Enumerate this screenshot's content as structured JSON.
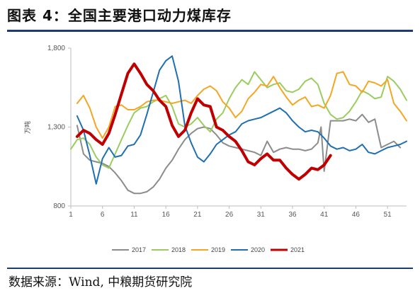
{
  "figure": {
    "title": "图表 4：全国主要港口动力煤库存",
    "source": "数据来源：Wind, 中粮期货研究院"
  },
  "chart_data": {
    "type": "line",
    "ylabel": "万吨",
    "ylim": [
      800,
      1800
    ],
    "yticks": [
      "800",
      "1,300",
      "1,800"
    ],
    "yticks_values": [
      800,
      1300,
      1800
    ],
    "xlim": [
      1,
      54
    ],
    "xticks": [
      "1",
      "6",
      "11",
      "16",
      "21",
      "26",
      "31",
      "36",
      "41",
      "46",
      "51"
    ],
    "xticks_values": [
      1,
      6,
      11,
      16,
      21,
      26,
      31,
      36,
      41,
      46,
      51
    ],
    "legend_position": "bottom",
    "series": [
      {
        "name": "2017",
        "color": "#8c8c8c",
        "width": 2,
        "x": [
          2,
          3,
          4,
          5,
          6,
          7,
          8,
          9,
          10,
          11,
          12,
          13,
          14,
          15,
          16,
          17,
          18,
          19,
          20,
          21,
          22,
          23,
          24,
          25,
          26,
          27,
          28,
          29,
          30,
          31,
          32,
          33,
          34,
          35,
          36,
          37,
          38,
          39,
          40,
          40.5,
          41,
          41.5,
          42,
          43,
          44,
          45,
          46,
          47,
          48,
          49,
          50,
          51,
          52,
          53
        ],
        "values": [
          1310,
          1130,
          1090,
          1080,
          1070,
          1050,
          1010,
          960,
          900,
          880,
          880,
          890,
          920,
          970,
          1040,
          1090,
          1160,
          1220,
          1260,
          1290,
          1300,
          1290,
          1250,
          1200,
          1180,
          1170,
          1160,
          1150,
          1140,
          1120,
          1210,
          1140,
          1160,
          1170,
          1160,
          1160,
          1150,
          1160,
          1200,
          1300,
          1020,
          1180,
          1340,
          1340,
          1340,
          1350,
          1340,
          1380,
          1330,
          1350,
          1170,
          1190,
          1210,
          1170
        ]
      },
      {
        "name": "2018",
        "color": "#9acd5f",
        "width": 2,
        "x": [
          1,
          2,
          3,
          4,
          5,
          6,
          7,
          8,
          9,
          10,
          11,
          12,
          13,
          14,
          15,
          16,
          17,
          18,
          19,
          20,
          21,
          22,
          23,
          24,
          25,
          26,
          27,
          28,
          29,
          30,
          31,
          32,
          33,
          34,
          35,
          36,
          37,
          38,
          39,
          40,
          41,
          42,
          43,
          44,
          45,
          46,
          47,
          48,
          49,
          50,
          51,
          52,
          53,
          54
        ],
        "values": [
          1160,
          1220,
          1230,
          1190,
          1110,
          1060,
          1040,
          1130,
          1220,
          1310,
          1390,
          1420,
          1430,
          1460,
          1480,
          1500,
          1430,
          1320,
          1300,
          1320,
          1360,
          1310,
          1270,
          1350,
          1390,
          1480,
          1550,
          1600,
          1570,
          1650,
          1600,
          1550,
          1570,
          1580,
          1530,
          1520,
          1540,
          1590,
          1610,
          1570,
          1450,
          1380,
          1350,
          1360,
          1400,
          1460,
          1530,
          1510,
          1480,
          1490,
          1620,
          1590,
          1540,
          1470
        ]
      },
      {
        "name": "2019",
        "color": "#f5a623",
        "width": 2,
        "x": [
          2,
          3,
          4,
          5,
          6,
          7,
          8,
          9,
          10,
          11,
          12,
          13,
          14,
          15,
          16,
          17,
          18,
          19,
          20,
          21,
          22,
          23,
          24,
          25,
          26,
          27,
          28,
          29,
          30,
          31,
          32,
          33,
          34,
          35,
          36,
          37,
          38,
          39,
          40,
          41,
          42,
          43,
          44,
          45,
          46,
          47,
          48,
          49,
          50,
          51,
          52,
          53,
          54
        ],
        "values": [
          1450,
          1500,
          1420,
          1300,
          1230,
          1300,
          1430,
          1440,
          1410,
          1410,
          1430,
          1460,
          1470,
          1470,
          1460,
          1450,
          1460,
          1470,
          1450,
          1500,
          1540,
          1560,
          1530,
          1460,
          1420,
          1360,
          1400,
          1480,
          1520,
          1570,
          1560,
          1620,
          1550,
          1490,
          1440,
          1470,
          1490,
          1430,
          1440,
          1420,
          1500,
          1640,
          1650,
          1570,
          1560,
          1520,
          1590,
          1580,
          1560,
          1600,
          1450,
          1400,
          1340
        ]
      },
      {
        "name": "2020",
        "color": "#1f6fb2",
        "width": 2,
        "x": [
          2,
          3,
          4,
          5,
          6,
          7,
          8,
          9,
          10,
          11,
          12,
          13,
          14,
          15,
          16,
          17,
          18,
          19,
          20,
          21,
          22,
          23,
          24,
          25,
          26,
          27,
          28,
          29,
          30,
          31,
          32,
          33,
          34,
          35,
          36,
          37,
          38,
          39,
          40,
          41,
          42,
          43,
          44,
          45,
          46,
          47,
          48,
          49,
          50,
          51,
          52,
          53,
          54
        ],
        "values": [
          1370,
          1280,
          1120,
          940,
          1100,
          1170,
          1110,
          1120,
          1180,
          1190,
          1250,
          1380,
          1520,
          1660,
          1720,
          1750,
          1590,
          1310,
          1200,
          1110,
          1080,
          1130,
          1190,
          1220,
          1250,
          1270,
          1320,
          1340,
          1350,
          1360,
          1380,
          1400,
          1420,
          1390,
          1340,
          1300,
          1270,
          1280,
          1270,
          1230,
          1180,
          1160,
          1170,
          1150,
          1160,
          1190,
          1140,
          1130,
          1150,
          1170,
          1180,
          1190,
          1210
        ]
      },
      {
        "name": "2021",
        "color": "#c00000",
        "width": 4,
        "x": [
          2,
          3,
          4,
          5,
          6,
          7,
          8,
          9,
          10,
          11,
          12,
          13,
          14,
          15,
          16,
          17,
          18,
          19,
          20,
          21,
          22,
          23,
          24,
          25,
          26,
          27,
          28,
          29,
          30,
          31,
          32,
          33,
          34,
          35,
          36,
          37,
          38,
          39,
          40,
          41,
          42
        ],
        "values": [
          1240,
          1280,
          1260,
          1220,
          1190,
          1260,
          1380,
          1510,
          1640,
          1700,
          1640,
          1570,
          1530,
          1470,
          1430,
          1310,
          1240,
          1280,
          1390,
          1480,
          1440,
          1430,
          1300,
          1280,
          1240,
          1210,
          1150,
          1080,
          1060,
          1100,
          1130,
          1090,
          1090,
          1040,
          1000,
          970,
          1000,
          1040,
          1030,
          1060,
          1120
        ]
      }
    ]
  }
}
